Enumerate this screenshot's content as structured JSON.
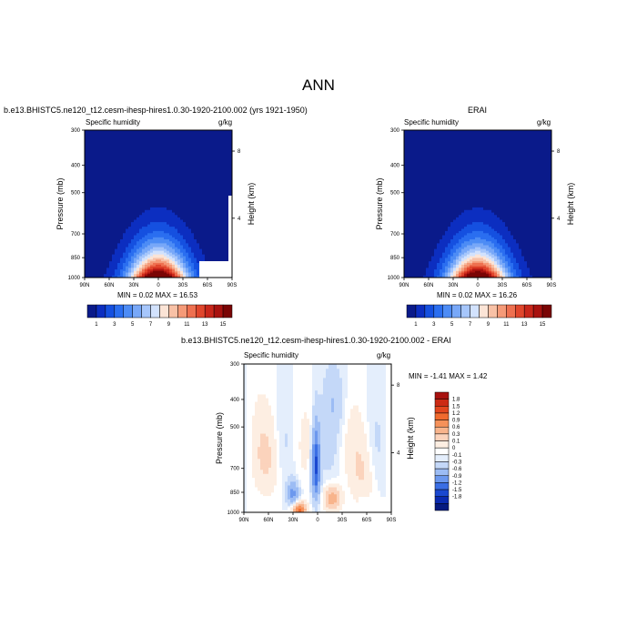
{
  "page_title": "ANN",
  "chart_data": [
    {
      "type": "heatmap",
      "panel": "model",
      "title": "b.e13.BHISTC5.ne120_t12.cesm-ihesp-hires1.0.30-1920-2100.002 (yrs 1921-1950)",
      "left_label": "Specific humidity",
      "right_label": "g/kg",
      "ylabel": "Pressure (mb)",
      "y2label": "Height (km)",
      "x_ticks": [
        "90N",
        "60N",
        "30N",
        "0",
        "30S",
        "60S",
        "90S"
      ],
      "y_ticks": [
        "300",
        "400",
        "500",
        "700",
        "850",
        "1000"
      ],
      "y2_ticks": [
        "8",
        "4"
      ],
      "ylim": [
        1000,
        300
      ],
      "min_text": "MIN =   0.02  MAX =  16.53",
      "min": 0.02,
      "max": 16.53,
      "colorbar": {
        "labels": [
          "1",
          "3",
          "5",
          "7",
          "9",
          "11",
          "13",
          "15"
        ],
        "colors": [
          "#0a1a8a",
          "#0c2ec0",
          "#1550e0",
          "#2a6ef0",
          "#4d8cf5",
          "#78a8f8",
          "#a6c6fb",
          "#d2e2fd",
          "#fbe4d6",
          "#f8c1a6",
          "#f59a78",
          "#ee7050",
          "#e0462c",
          "#c8261a",
          "#a8120f",
          "#7a0505"
        ]
      }
    },
    {
      "type": "heatmap",
      "panel": "obs",
      "title": "ERAI",
      "left_label": "Specific humidity",
      "right_label": "g/kg",
      "ylabel": "Pressure (mb)",
      "y2label": "Height (km)",
      "x_ticks": [
        "90N",
        "60N",
        "30N",
        "0",
        "30S",
        "60S",
        "90S"
      ],
      "y_ticks": [
        "300",
        "400",
        "500",
        "700",
        "850",
        "1000"
      ],
      "y2_ticks": [
        "8",
        "4"
      ],
      "ylim": [
        1000,
        300
      ],
      "min_text": "MIN =   0.02  MAX =  16.26",
      "min": 0.02,
      "max": 16.26,
      "colorbar": {
        "labels": [
          "1",
          "3",
          "5",
          "7",
          "9",
          "11",
          "13",
          "15"
        ],
        "colors": [
          "#0a1a8a",
          "#0c2ec0",
          "#1550e0",
          "#2a6ef0",
          "#4d8cf5",
          "#78a8f8",
          "#a6c6fb",
          "#d2e2fd",
          "#fbe4d6",
          "#f8c1a6",
          "#f59a78",
          "#ee7050",
          "#e0462c",
          "#c8261a",
          "#a8120f",
          "#7a0505"
        ]
      }
    },
    {
      "type": "heatmap",
      "panel": "diff",
      "title": "b.e13.BHISTC5.ne120_t12.cesm-ihesp-hires1.0.30-1920-2100.002 - ERAI",
      "left_label": "Specific humidity",
      "right_label": "g/kg",
      "ylabel": "Pressure (mb)",
      "y2label": "Height (km)",
      "x_ticks": [
        "90N",
        "60N",
        "30N",
        "0",
        "30S",
        "60S",
        "90S"
      ],
      "y_ticks": [
        "300",
        "400",
        "500",
        "700",
        "850",
        "1000"
      ],
      "y2_ticks": [
        "8",
        "4"
      ],
      "ylim": [
        1000,
        300
      ],
      "min_text": "MIN =  -1.41  MAX =   1.42",
      "min": -1.41,
      "max": 1.42,
      "colorbar": {
        "labels": [
          "1.8",
          "1.5",
          "1.2",
          "0.9",
          "0.6",
          "0.3",
          "0.1",
          "0",
          "-0.1",
          "-0.3",
          "-0.6",
          "-0.9",
          "-1.2",
          "-1.5",
          "-1.8"
        ],
        "colors": [
          "#a8120f",
          "#cc2a14",
          "#e2461e",
          "#f06a2e",
          "#f5915a",
          "#f8b48c",
          "#fbd3bc",
          "#fdeee2",
          "#ffffff",
          "#e4eefc",
          "#c4d8f8",
          "#9cbcf4",
          "#6c98ee",
          "#3a6ee4",
          "#1a48d0",
          "#0a2ab0",
          "#061a80"
        ]
      }
    }
  ]
}
